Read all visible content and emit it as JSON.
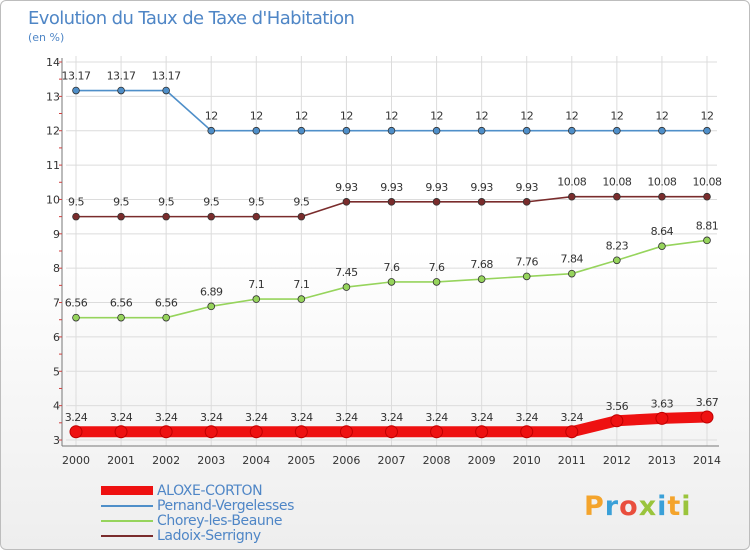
{
  "title": "Evolution du Taux de Taxe d'Habitation",
  "subtitle": "(en %)",
  "logo": {
    "text": "Proxiti",
    "colors": [
      "#f4a42c",
      "#3aa0d8",
      "#e94e3d",
      "#9ac43c",
      "#3aa0d8",
      "#f4a42c",
      "#9ac43c"
    ]
  },
  "chart_data": {
    "type": "line",
    "x": [
      2000,
      2001,
      2002,
      2003,
      2004,
      2005,
      2006,
      2007,
      2008,
      2009,
      2010,
      2011,
      2012,
      2013,
      2014
    ],
    "ylim": [
      3,
      14
    ],
    "yticks": [
      3,
      4,
      5,
      6,
      7,
      8,
      9,
      10,
      11,
      12,
      13,
      14
    ],
    "grid": true,
    "legend_position": "bottom-left",
    "series": [
      {
        "name": "ALOXE-CORTON",
        "color": "#ee1111",
        "values": [
          3.24,
          3.24,
          3.24,
          3.24,
          3.24,
          3.24,
          3.24,
          3.24,
          3.24,
          3.24,
          3.24,
          3.24,
          3.56,
          3.63,
          3.67
        ],
        "labels": [
          "3.24",
          "3.24",
          "3.24",
          "3.24",
          "3.24",
          "3.24",
          "3.24",
          "3.24",
          "3.24",
          "3.24",
          "3.24",
          "3.24",
          "3.56",
          "3.63",
          "3.67"
        ]
      },
      {
        "name": "Pernand-Vergelesses",
        "color": "#4f8fc9",
        "values": [
          13.17,
          13.17,
          13.17,
          12,
          12,
          12,
          12,
          12,
          12,
          12,
          12,
          12,
          12,
          12,
          12
        ],
        "labels": [
          "13.17",
          "13.17",
          "13.17",
          "12",
          "12",
          "12",
          "12",
          "12",
          "12",
          "12",
          "12",
          "12",
          "12",
          "12",
          "12"
        ]
      },
      {
        "name": "Chorey-les-Beaune",
        "color": "#96d45c",
        "values": [
          6.56,
          6.56,
          6.56,
          6.89,
          7.1,
          7.1,
          7.45,
          7.6,
          7.6,
          7.68,
          7.76,
          7.84,
          8.23,
          8.64,
          8.81
        ],
        "labels": [
          "6.56",
          "6.56",
          "6.56",
          "6.89",
          "7.1",
          "7.1",
          "7.45",
          "7.6",
          "7.6",
          "7.68",
          "7.76",
          "7.84",
          "8.23",
          "8.64",
          "8.81"
        ]
      },
      {
        "name": "Ladoix-Serrigny",
        "color": "#7a2c2c",
        "values": [
          9.5,
          9.5,
          9.5,
          9.5,
          9.5,
          9.5,
          9.93,
          9.93,
          9.93,
          9.93,
          9.93,
          10.08,
          10.08,
          10.08,
          10.08
        ],
        "labels": [
          "9.5",
          "9.5",
          "9.5",
          "9.5",
          "9.5",
          "9.5",
          "9.93",
          "9.93",
          "9.93",
          "9.93",
          "9.93",
          "10.08",
          "10.08",
          "10.08",
          "10.08"
        ]
      }
    ]
  }
}
